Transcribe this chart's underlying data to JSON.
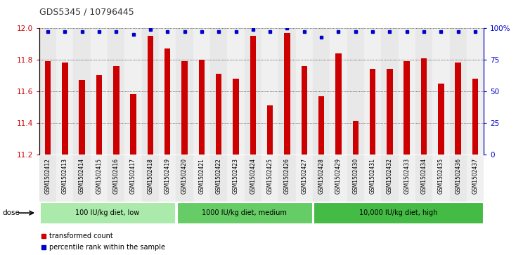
{
  "title": "GDS5345 / 10796445",
  "samples": [
    "GSM1502412",
    "GSM1502413",
    "GSM1502414",
    "GSM1502415",
    "GSM1502416",
    "GSM1502417",
    "GSM1502418",
    "GSM1502419",
    "GSM1502420",
    "GSM1502421",
    "GSM1502422",
    "GSM1502423",
    "GSM1502424",
    "GSM1502425",
    "GSM1502426",
    "GSM1502427",
    "GSM1502428",
    "GSM1502429",
    "GSM1502430",
    "GSM1502431",
    "GSM1502432",
    "GSM1502433",
    "GSM1502434",
    "GSM1502435",
    "GSM1502436",
    "GSM1502437"
  ],
  "transformed_counts": [
    11.79,
    11.78,
    11.67,
    11.7,
    11.76,
    11.58,
    11.95,
    11.87,
    11.79,
    11.8,
    11.71,
    11.68,
    11.95,
    11.51,
    11.97,
    11.76,
    11.57,
    11.84,
    11.41,
    11.74,
    11.74,
    11.79,
    11.81,
    11.65,
    11.78,
    11.68
  ],
  "percentile_ranks": [
    97,
    97,
    97,
    97,
    97,
    95,
    99,
    97,
    97,
    97,
    97,
    97,
    99,
    97,
    100,
    97,
    93,
    97,
    97,
    97,
    97,
    97,
    97,
    97,
    97,
    97
  ],
  "ylim_left": [
    11.2,
    12.0
  ],
  "ylim_right": [
    0,
    100
  ],
  "yticks_left": [
    11.2,
    11.4,
    11.6,
    11.8,
    12.0
  ],
  "yticks_right": [
    0,
    25,
    50,
    75,
    100
  ],
  "ytick_labels_right": [
    "0",
    "25",
    "50",
    "75",
    "100%"
  ],
  "bar_color": "#cc0000",
  "percentile_color": "#0000cc",
  "groups": [
    {
      "label": "100 IU/kg diet, low",
      "start": 0,
      "end": 8,
      "color": "#aaeaaa"
    },
    {
      "label": "1000 IU/kg diet, medium",
      "start": 8,
      "end": 16,
      "color": "#66cc66"
    },
    {
      "label": "10,000 IU/kg diet, high",
      "start": 16,
      "end": 26,
      "color": "#44bb44"
    }
  ],
  "dose_label": "dose",
  "legend_items": [
    {
      "label": "transformed count",
      "color": "#cc0000"
    },
    {
      "label": "percentile rank within the sample",
      "color": "#0000cc"
    }
  ],
  "grid_color": "#000000",
  "col_bg_even": "#e8e8e8",
  "col_bg_odd": "#f0f0f0"
}
